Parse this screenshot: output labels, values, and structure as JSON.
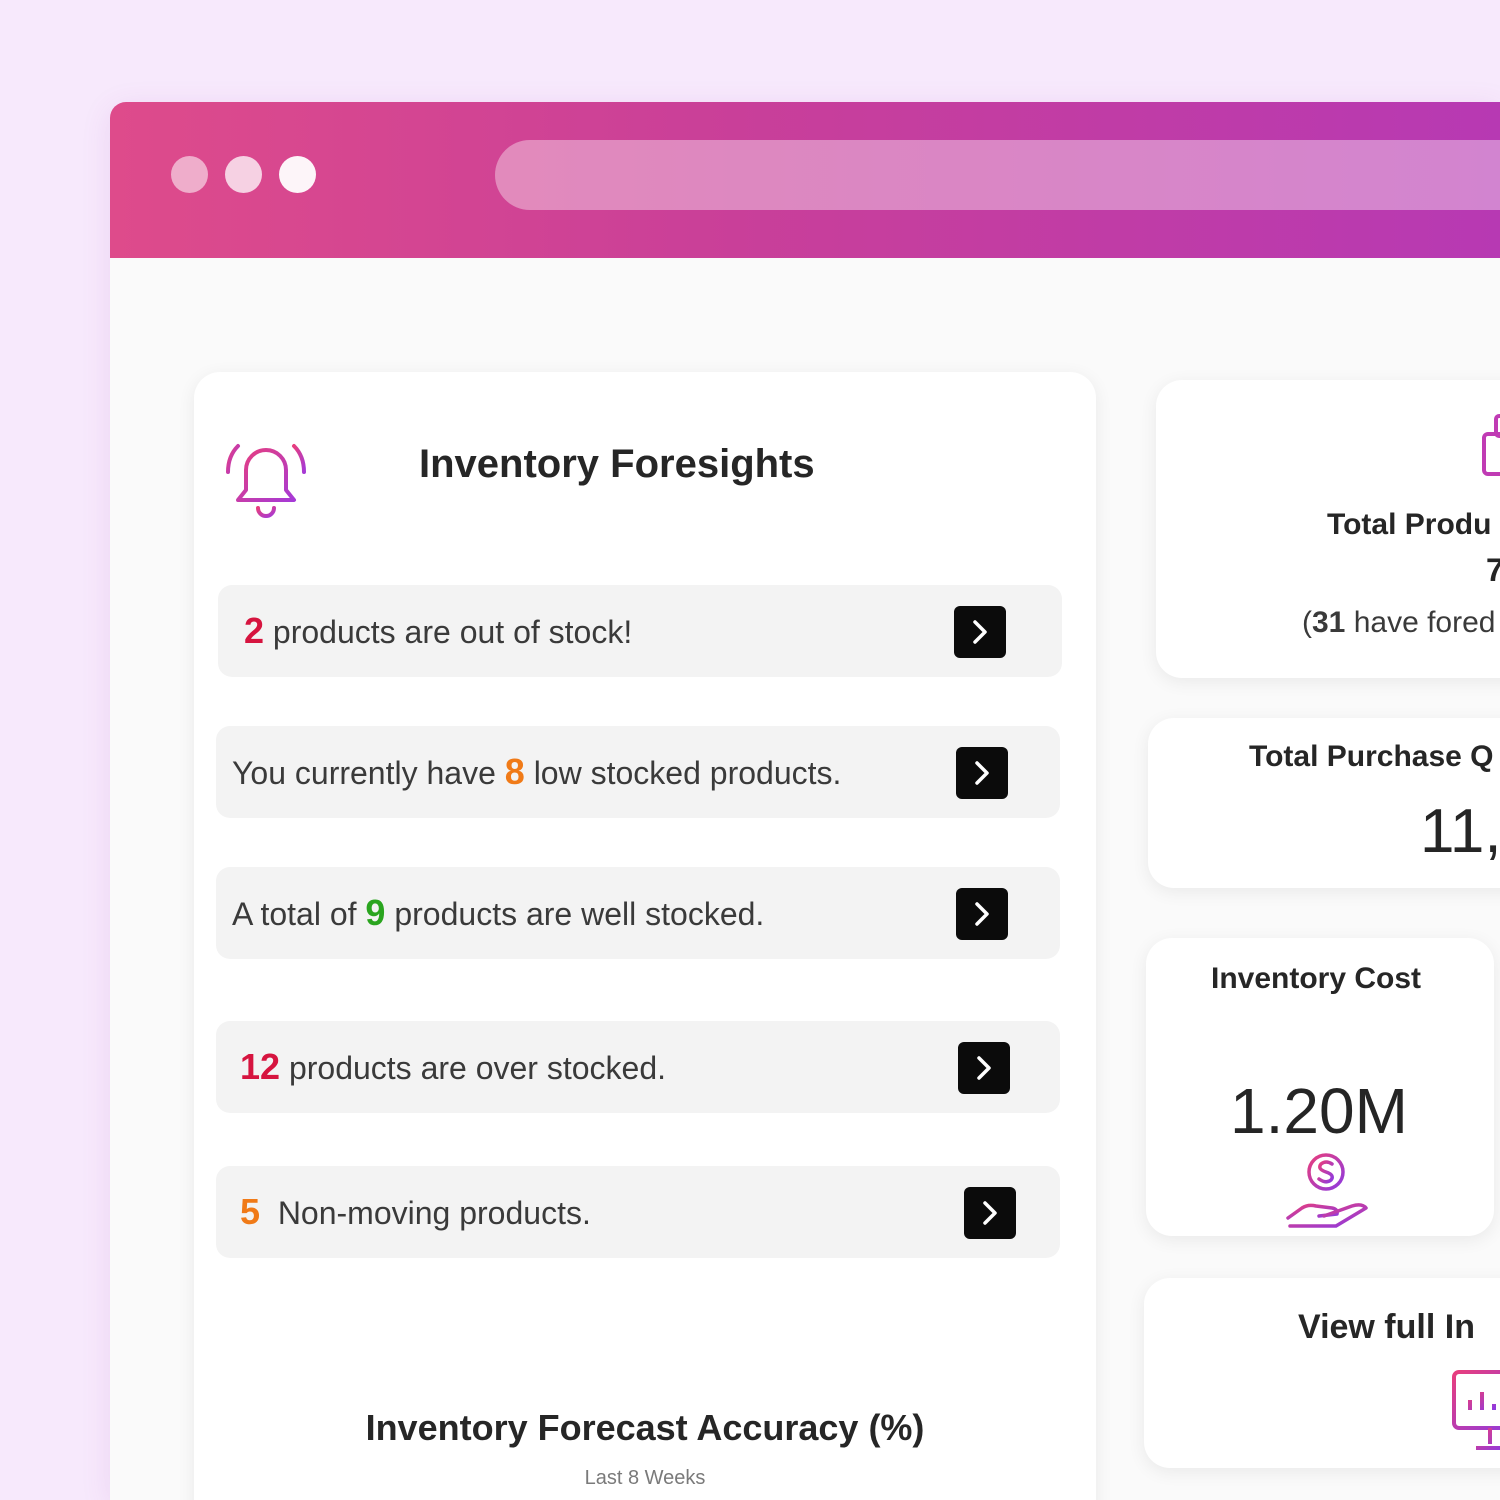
{
  "foresights": {
    "title": "Inventory Foresights",
    "rows": [
      {
        "count": "2",
        "text": " products are out of stock!"
      },
      {
        "prefix": "You currently have ",
        "count": "8",
        "text": " low stocked products."
      },
      {
        "prefix": "A total of ",
        "count": "9",
        "text": " products are well stocked."
      },
      {
        "count": "12",
        "text": " products are over stocked."
      },
      {
        "count": "5",
        "text": "  Non-moving products."
      }
    ],
    "accuracy_title": "Inventory Forecast Accuracy (%)",
    "accuracy_sub": "Last 8 Weeks"
  },
  "stats": {
    "total_products_label": "Total Produ",
    "total_products_value": "7",
    "forecast_count": "31",
    "forecast_text": " have fored",
    "purchase_label": "Total Purchase Q",
    "purchase_value": "11,",
    "inventory_cost_label": "Inventory Cost",
    "inventory_cost_value": "1.20M",
    "view_full_label": "View full In"
  },
  "icons": [
    "bell-icon",
    "chevron-right-icon",
    "box-icon",
    "money-hand-icon",
    "monitor-chart-icon"
  ],
  "colors": {
    "accent_pink": "#de4b8b",
    "accent_purple": "#b739b3",
    "red": "#d6143f",
    "orange": "#f07a17",
    "green": "#2aa51f"
  }
}
